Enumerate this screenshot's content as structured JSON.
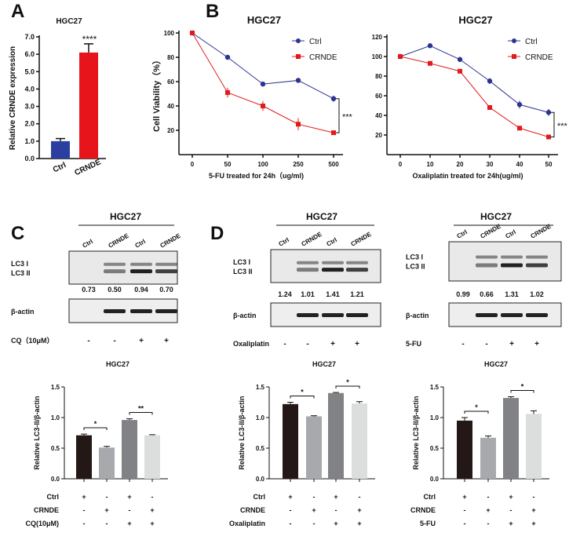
{
  "panel_labels": [
    "A",
    "B",
    "C",
    "D"
  ],
  "blots": [
    {
      "title": "HGC27",
      "lanes": [
        "Ctrl",
        "CRNDE",
        "Ctrl",
        "CRNDE"
      ],
      "band_label_1": "LC3 I",
      "band_label_2": "LC3 II",
      "ratios": [
        "0.73",
        "0.50",
        "0.94",
        "0.70"
      ],
      "loading_label": "β-actin",
      "treatment_label": "CQ（10μM）",
      "treatment": [
        "-",
        "-",
        "+",
        "+"
      ]
    },
    {
      "title": "HGC27",
      "lanes": [
        "Ctrl",
        "CRNDE",
        "Ctrl",
        "CRNDE"
      ],
      "band_label_1": "LC3 I",
      "band_label_2": "LC3 II",
      "ratios": [
        "1.24",
        "1.01",
        "1.41",
        "1.21"
      ],
      "loading_label": "β-actin",
      "treatment_label": "Oxaliplatin",
      "treatment": [
        "-",
        "-",
        "+",
        "+"
      ]
    },
    {
      "title": "HGC27",
      "lanes": [
        "Ctrl",
        "CRNDE",
        "Ctrl",
        "CRNDE"
      ],
      "band_label_1": "LC3 I",
      "band_label_2": "LC3 II",
      "ratios": [
        "0.99",
        "0.66",
        "1.31",
        "1.02"
      ],
      "loading_label": "β-actin",
      "treatment_label": "5-FU",
      "treatment": [
        "-",
        "-",
        "+",
        "+"
      ]
    }
  ],
  "chart_data": [
    {
      "type": "bar",
      "title": "HGC27",
      "categories": [
        "Ctrl",
        "CRNDE"
      ],
      "values": [
        1.0,
        6.1
      ],
      "errors": [
        0.15,
        0.5
      ],
      "colors": [
        "#2b3f9e",
        "#e8141b"
      ],
      "ylabel": "Relative CRNDE expression",
      "ylim": [
        0,
        7
      ],
      "yticks": [
        "0.0",
        "1.0",
        "2.0",
        "3.0",
        "4.0",
        "5.0",
        "6.0",
        "7.0"
      ],
      "annotation": "****"
    },
    {
      "type": "line",
      "title": "HGC27",
      "x": [
        "0",
        "50",
        "100",
        "250",
        "500"
      ],
      "xlabel": "5-FU treated for 24h（ug/ml)",
      "ylabel": "Cell Viability（%）",
      "ylim": [
        0,
        100
      ],
      "yticks": [
        "20",
        "40",
        "60",
        "80",
        "100"
      ],
      "series": [
        {
          "name": "Ctrl",
          "color": "#2b3490",
          "values": [
            100,
            80,
            58,
            61,
            46
          ],
          "errors": [
            1,
            1,
            1,
            1,
            2.5
          ]
        },
        {
          "name": "CRNDE",
          "color": "#e31a1c",
          "values": [
            100,
            51,
            40,
            25,
            18
          ],
          "errors": [
            1,
            4,
            4,
            5,
            1
          ]
        }
      ],
      "legend": "top-right",
      "annotation": "***"
    },
    {
      "type": "line",
      "title": "HGC27",
      "x": [
        "0",
        "10",
        "20",
        "30",
        "40",
        "50"
      ],
      "xlabel": "Oxaliplatin treated for 24h(ug/ml)",
      "ylabel": "",
      "ylim": [
        0,
        120
      ],
      "yticks": [
        "20",
        "40",
        "60",
        "80",
        "100",
        "120"
      ],
      "series": [
        {
          "name": "Ctrl",
          "color": "#2b3490",
          "values": [
            100,
            111,
            97,
            75,
            51,
            43
          ],
          "errors": [
            1,
            1.5,
            2,
            3,
            4,
            3.5
          ]
        },
        {
          "name": "CRNDE",
          "color": "#e31a1c",
          "values": [
            100,
            93,
            85,
            48,
            27,
            18
          ],
          "errors": [
            1,
            1,
            1,
            1,
            1,
            1
          ]
        }
      ],
      "legend": "top-right",
      "annotation": "***"
    },
    {
      "type": "bar",
      "title": "HGC27",
      "values": [
        0.71,
        0.51,
        0.96,
        0.71
      ],
      "errors": [
        0.02,
        0.02,
        0.02,
        0.01
      ],
      "ylabel": "Relative LC3-II/β-actin",
      "ylim": [
        0,
        1.5
      ],
      "yticks": [
        "0.0",
        "0.5",
        "1.0",
        "1.5"
      ],
      "sig": [
        "*",
        "**"
      ],
      "rows": [
        {
          "label": "Ctrl",
          "values": [
            "+",
            "-",
            "+",
            "-"
          ]
        },
        {
          "label": "CRNDE",
          "values": [
            "-",
            "+",
            "-",
            "+"
          ]
        },
        {
          "label": "CQ(10μM)",
          "values": [
            "-",
            "-",
            "+",
            "+"
          ]
        }
      ]
    },
    {
      "type": "bar",
      "title": "HGC27",
      "values": [
        1.22,
        1.02,
        1.4,
        1.23
      ],
      "errors": [
        0.03,
        0.01,
        0.01,
        0.03
      ],
      "ylabel": "Relative LC3-II/β-actin",
      "ylim": [
        0,
        1.5
      ],
      "yticks": [
        "0.0",
        "0.5",
        "1.0",
        "1.5"
      ],
      "sig": [
        "*",
        "*"
      ],
      "rows": [
        {
          "label": "Ctrl",
          "values": [
            "+",
            "-",
            "+",
            "-"
          ]
        },
        {
          "label": "CRNDE",
          "values": [
            "-",
            "+",
            "-",
            "+"
          ]
        },
        {
          "label": "Oxaliplatin",
          "values": [
            "-",
            "-",
            "+",
            "+"
          ]
        }
      ]
    },
    {
      "type": "bar",
      "title": "HGC27",
      "values": [
        0.95,
        0.67,
        1.32,
        1.06
      ],
      "errors": [
        0.05,
        0.03,
        0.02,
        0.05
      ],
      "ylabel": "Relative LC3-II/β-actin",
      "ylim": [
        0,
        1.5
      ],
      "yticks": [
        "0.0",
        "0.5",
        "1.0",
        "1.5"
      ],
      "sig": [
        "*",
        "*"
      ],
      "rows": [
        {
          "label": "Ctrl",
          "values": [
            "+",
            "-",
            "+",
            "-"
          ]
        },
        {
          "label": "CRNDE",
          "values": [
            "-",
            "+",
            "-",
            "+"
          ]
        },
        {
          "label": "5-FU",
          "values": [
            "-",
            "-",
            "+",
            "+"
          ]
        }
      ]
    }
  ]
}
